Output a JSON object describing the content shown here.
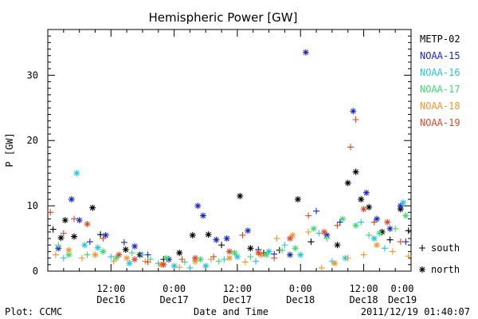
{
  "chart_data": {
    "type": "scatter",
    "title": "Hemispheric Power [GW]",
    "ylabel": "P [GW]",
    "xlabel": "Date and Time",
    "ylim": [
      0,
      37
    ],
    "xlim": [
      0,
      69
    ],
    "yticks": [
      0,
      10,
      20,
      30
    ],
    "xticks": [
      {
        "x": 12,
        "label": "12:00",
        "date": "Dec16"
      },
      {
        "x": 24,
        "label": "0:00",
        "date": "Dec17"
      },
      {
        "x": 36,
        "label": "12:00",
        "date": "Dec17"
      },
      {
        "x": 48,
        "label": "0:00",
        "date": "Dec18"
      },
      {
        "x": 60,
        "label": "12:00",
        "date": "Dec18"
      },
      {
        "x": 72,
        "label": "0:00",
        "date": "Dec19"
      }
    ],
    "marker_legend": [
      {
        "symbol": "+",
        "label": "south"
      },
      {
        "symbol": "*",
        "label": "north"
      }
    ],
    "series": [
      {
        "name": "METP-02",
        "color": "#000000",
        "points": [
          [
            1,
            6.4,
            "+"
          ],
          [
            2.5,
            5.1,
            "*"
          ],
          [
            3.3,
            7.8,
            "*"
          ],
          [
            5,
            5.3,
            "*"
          ],
          [
            8.5,
            9.7,
            "*"
          ],
          [
            10,
            5.6,
            "+"
          ],
          [
            14.8,
            3.3,
            "*"
          ],
          [
            17.5,
            2.5,
            "*"
          ],
          [
            22,
            1.8,
            "+"
          ],
          [
            25,
            2.8,
            "*"
          ],
          [
            27.5,
            5.5,
            "*"
          ],
          [
            30.5,
            5.6,
            "*"
          ],
          [
            33,
            4.0,
            "+"
          ],
          [
            36.5,
            11.5,
            "*"
          ],
          [
            38.5,
            3.5,
            "*"
          ],
          [
            41,
            2.8,
            "+"
          ],
          [
            44,
            3.2,
            "+"
          ],
          [
            47.5,
            11.0,
            "*"
          ],
          [
            50,
            4.5,
            "+"
          ],
          [
            55,
            4.0,
            "*"
          ],
          [
            57,
            13.5,
            "*"
          ],
          [
            58.5,
            15.2,
            "*"
          ],
          [
            59.5,
            11.0,
            "*"
          ],
          [
            61,
            9.8,
            "*"
          ],
          [
            63.5,
            6.0,
            "*"
          ],
          [
            65,
            4.8,
            "+"
          ],
          [
            67,
            9.5,
            "*"
          ],
          [
            68.5,
            6.2,
            "+"
          ]
        ]
      },
      {
        "name": "NOAA-15",
        "color": "#1a26c8",
        "points": [
          [
            2,
            3.5,
            "*"
          ],
          [
            4.5,
            11.0,
            "*"
          ],
          [
            6,
            7.8,
            "*"
          ],
          [
            8,
            4.5,
            "+"
          ],
          [
            11,
            5.5,
            "*"
          ],
          [
            14.5,
            4.4,
            "+"
          ],
          [
            16.5,
            3.8,
            "*"
          ],
          [
            19,
            2.5,
            "+"
          ],
          [
            23,
            1.8,
            "*"
          ],
          [
            28.5,
            10.0,
            "*"
          ],
          [
            29.5,
            8.5,
            "*"
          ],
          [
            32,
            4.8,
            "*"
          ],
          [
            34,
            5.0,
            "*"
          ],
          [
            38,
            6.2,
            "*"
          ],
          [
            40,
            3.3,
            "+"
          ],
          [
            43,
            2.6,
            "+"
          ],
          [
            46,
            2.5,
            "*"
          ],
          [
            49,
            33.5,
            "*"
          ],
          [
            51,
            9.2,
            "+"
          ],
          [
            53,
            5.5,
            "*"
          ],
          [
            55.5,
            7.5,
            "+"
          ],
          [
            58,
            24.5,
            "*"
          ],
          [
            60.5,
            12.0,
            "*"
          ],
          [
            62.5,
            8.0,
            "*"
          ],
          [
            65,
            6.5,
            "*"
          ],
          [
            67,
            10.0,
            "*"
          ],
          [
            68,
            4.5,
            "+"
          ]
        ]
      },
      {
        "name": "NOAA-16",
        "color": "#23c8d8",
        "points": [
          [
            3,
            2.0,
            "+"
          ],
          [
            5.5,
            15.0,
            "*"
          ],
          [
            7,
            4.0,
            "*"
          ],
          [
            9.5,
            3.6,
            "*"
          ],
          [
            12,
            2.2,
            "+"
          ],
          [
            15.5,
            1.2,
            "*"
          ],
          [
            18,
            2.5,
            "+"
          ],
          [
            21,
            1.2,
            "+"
          ],
          [
            24,
            0.8,
            "*"
          ],
          [
            27,
            0.5,
            "+"
          ],
          [
            30,
            0.8,
            "*"
          ],
          [
            33.5,
            1.8,
            "+"
          ],
          [
            36,
            2.2,
            "*"
          ],
          [
            39.5,
            1.5,
            "+"
          ],
          [
            42,
            3.0,
            "*"
          ],
          [
            45,
            4.0,
            "+"
          ],
          [
            48,
            2.5,
            "*"
          ],
          [
            51.5,
            5.8,
            "+"
          ],
          [
            54,
            1.5,
            "+"
          ],
          [
            56.5,
            2.0,
            "*"
          ],
          [
            59.5,
            7.5,
            "+"
          ],
          [
            62,
            5.0,
            "*"
          ],
          [
            64,
            3.5,
            "+"
          ],
          [
            67.5,
            10.5,
            "*"
          ]
        ]
      },
      {
        "name": "NOAA-17",
        "color": "#3adc6e",
        "points": [
          [
            2,
            4.0,
            "+"
          ],
          [
            4,
            2.5,
            "*"
          ],
          [
            7.5,
            2.5,
            "+"
          ],
          [
            10.5,
            3.0,
            "*"
          ],
          [
            13,
            2.0,
            "*"
          ],
          [
            16,
            2.8,
            "+"
          ],
          [
            19.5,
            1.8,
            "+"
          ],
          [
            22.5,
            2.0,
            "*"
          ],
          [
            26,
            1.4,
            "+"
          ],
          [
            29,
            1.8,
            "*"
          ],
          [
            32.5,
            1.5,
            "+"
          ],
          [
            35.5,
            2.8,
            "*"
          ],
          [
            38.5,
            2.2,
            "+"
          ],
          [
            41.5,
            2.5,
            "*"
          ],
          [
            44.5,
            3.2,
            "+"
          ],
          [
            47,
            3.5,
            "*"
          ],
          [
            50.5,
            6.5,
            "*"
          ],
          [
            53,
            5.0,
            "+"
          ],
          [
            56,
            8.0,
            "*"
          ],
          [
            58.5,
            7.0,
            "*"
          ],
          [
            61,
            5.5,
            "+"
          ],
          [
            63,
            5.8,
            "*"
          ],
          [
            66,
            6.5,
            "+"
          ],
          [
            68,
            8.5,
            "*"
          ]
        ]
      },
      {
        "name": "NOAA-18",
        "color": "#f0962a",
        "points": [
          [
            1.5,
            2.5,
            "+"
          ],
          [
            4,
            3.2,
            "*"
          ],
          [
            6.5,
            2.0,
            "+"
          ],
          [
            9,
            2.5,
            "*"
          ],
          [
            12.5,
            1.5,
            "+"
          ],
          [
            15,
            2.0,
            "*"
          ],
          [
            18.5,
            1.5,
            "+"
          ],
          [
            21.5,
            1.0,
            "*"
          ],
          [
            25,
            0.6,
            "+"
          ],
          [
            28,
            1.5,
            "*"
          ],
          [
            31,
            1.8,
            "+"
          ],
          [
            34.5,
            2.0,
            "*"
          ],
          [
            37.5,
            1.4,
            "+"
          ],
          [
            40.5,
            2.5,
            "*"
          ],
          [
            43.5,
            5.0,
            "+"
          ],
          [
            46.5,
            5.5,
            "*"
          ],
          [
            49.5,
            6.0,
            "+"
          ],
          [
            52,
            0.5,
            "+"
          ],
          [
            54.5,
            1.2,
            "*"
          ],
          [
            57,
            2.0,
            "+"
          ],
          [
            60,
            2.5,
            "+"
          ],
          [
            62.5,
            4.0,
            "*"
          ],
          [
            65.5,
            3.0,
            "+"
          ],
          [
            68.5,
            2.3,
            "+"
          ]
        ]
      },
      {
        "name": "NOAA-19",
        "color": "#e0472a",
        "points": [
          [
            0.5,
            9.0,
            "+"
          ],
          [
            3,
            5.8,
            "+"
          ],
          [
            5,
            8.0,
            "+"
          ],
          [
            7.5,
            7.2,
            "*"
          ],
          [
            10.5,
            5.0,
            "+"
          ],
          [
            13.5,
            2.5,
            "*"
          ],
          [
            16.5,
            1.8,
            "*"
          ],
          [
            19,
            1.4,
            "+"
          ],
          [
            22,
            1.0,
            "*"
          ],
          [
            25.5,
            1.8,
            "+"
          ],
          [
            28,
            2.0,
            "*"
          ],
          [
            31.5,
            2.2,
            "+"
          ],
          [
            34.5,
            3.0,
            "*"
          ],
          [
            37,
            5.5,
            "+"
          ],
          [
            40,
            2.8,
            "*"
          ],
          [
            43,
            2.0,
            "+"
          ],
          [
            46,
            5.0,
            "*"
          ],
          [
            49.5,
            8.5,
            "+"
          ],
          [
            52.5,
            6.0,
            "*"
          ],
          [
            55,
            7.0,
            "+"
          ],
          [
            57.5,
            19.0,
            "+"
          ],
          [
            58.5,
            23.2,
            "+"
          ],
          [
            60,
            9.5,
            "*"
          ],
          [
            62,
            7.5,
            "+"
          ],
          [
            64.5,
            7.5,
            "*"
          ],
          [
            67,
            4.5,
            "+"
          ]
        ]
      }
    ]
  },
  "footer": {
    "left": "Plot: CCMC",
    "timestamp": "2011/12/19 01:40:07"
  }
}
